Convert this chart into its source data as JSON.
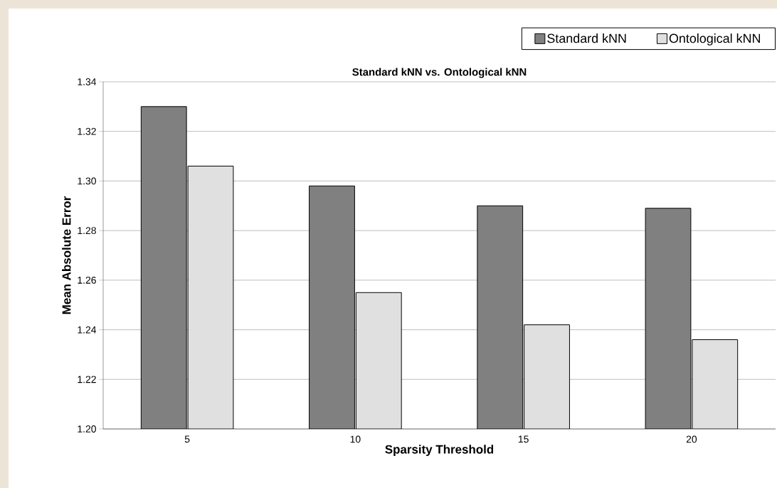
{
  "chart_data": {
    "type": "bar",
    "title": "Standard kNN vs. Ontological kNN",
    "xlabel": "Sparsity Threshold",
    "ylabel": "Mean Absolute Error",
    "categories": [
      "5",
      "10",
      "15",
      "20"
    ],
    "series": [
      {
        "name": "Standard kNN",
        "color": "#808080",
        "values": [
          1.33,
          1.298,
          1.29,
          1.289
        ]
      },
      {
        "name": "Ontological kNN",
        "color": "#e0e0e0",
        "values": [
          1.306,
          1.255,
          1.242,
          1.236
        ]
      }
    ],
    "ylim": [
      1.2,
      1.34
    ],
    "yticks": [
      {
        "value": 1.2,
        "label": "1.20"
      },
      1.22,
      1.24,
      1.26,
      1.28,
      {
        "value": 1.3,
        "label": "1.30"
      },
      1.32,
      1.34
    ],
    "grid": "y",
    "legend": "top right"
  }
}
